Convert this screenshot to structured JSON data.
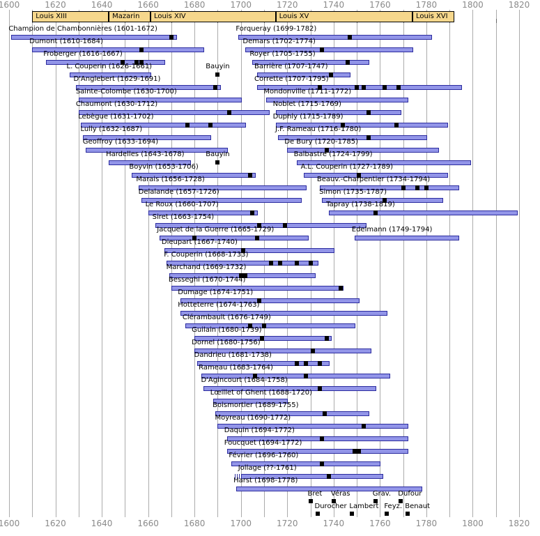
{
  "colors": {
    "background": "#FFFFFF",
    "bar_fill": "#9295E8",
    "bar_border": "#2B2B9E",
    "marker": "#000000",
    "reign_fill": "#F6D78C",
    "reign_border": "#000000",
    "grid": "#ABABAB",
    "axis_text": "#8A8A8A",
    "label_text": "#000000"
  },
  "chart_data": {
    "type": "timeline",
    "title": "French harpsichord composers timeline 1600-1820",
    "x_axis": {
      "min": 1600,
      "max": 1820,
      "label_step": 20,
      "grid_step": 10,
      "tick_labels": [
        "1600",
        "1620",
        "1640",
        "1660",
        "1680",
        "1700",
        "1720",
        "1740",
        "1760",
        "1780",
        "1800",
        "1820"
      ],
      "labels_position": "top and bottom"
    },
    "reigns": [
      {
        "label": "Louis XIII",
        "start": 1610,
        "end": 1643
      },
      {
        "label": "Mazarin",
        "start": 1643,
        "end": 1661
      },
      {
        "label": "Louis XIV",
        "start": 1661,
        "end": 1715
      },
      {
        "label": "Louis XV",
        "start": 1715,
        "end": 1774
      },
      {
        "label": "Louis XVI",
        "start": 1774,
        "end": 1792
      }
    ],
    "people": [
      {
        "row": 1,
        "label": "Champion de Chambonnières (1601-1672)",
        "start": 1601,
        "end": 1672,
        "markers": [
          1670
        ]
      },
      {
        "row": 1,
        "label": "Forqueray (1699-1782)",
        "start": 1699,
        "end": 1782,
        "markers": [
          1747
        ]
      },
      {
        "row": 2,
        "label": "Dumont (1610-1684)",
        "start": 1610,
        "end": 1684,
        "markers": [
          1657
        ]
      },
      {
        "row": 2,
        "label": "Demars (1702-1774)",
        "start": 1702,
        "end": 1774,
        "markers": [
          1735
        ]
      },
      {
        "row": 3,
        "label": "Froberger (1616-1667)",
        "start": 1616,
        "end": 1667,
        "markers": [
          1649,
          1655,
          1657
        ]
      },
      {
        "row": 3,
        "label": "Royer (1705-1755)",
        "start": 1705,
        "end": 1755,
        "markers": [
          1746
        ]
      },
      {
        "row": 4,
        "label": "L. Couperin (1626-1661)",
        "start": 1626,
        "end": 1661,
        "markers": []
      },
      {
        "row": 4,
        "label": "Barrière (1707-1747)",
        "start": 1707,
        "end": 1747,
        "markers": [
          1739
        ]
      },
      {
        "row": 5,
        "label": "D'Anglebert (1629-1691)",
        "start": 1629,
        "end": 1691,
        "markers": [
          1689
        ]
      },
      {
        "row": 5,
        "label": "Corrette (1707-1795)",
        "start": 1707,
        "end": 1795,
        "markers": [
          1734,
          1750,
          1753,
          1762,
          1768
        ]
      },
      {
        "row": 6,
        "label": "Sainte-Colombe (1630-1700)",
        "start": 1630,
        "end": 1700,
        "markers": []
      },
      {
        "row": 6,
        "label": "Mondonville (1711-1772)",
        "start": 1711,
        "end": 1772,
        "markers": []
      },
      {
        "row": 7,
        "label": "Chaumont (1630-1712)",
        "start": 1630,
        "end": 1712,
        "markers": [
          1695
        ]
      },
      {
        "row": 7,
        "label": "Noblet (1715-1769)",
        "start": 1715,
        "end": 1769,
        "markers": [
          1755
        ]
      },
      {
        "row": 8,
        "label": "Lebègue (1631-1702)",
        "start": 1631,
        "end": 1702,
        "markers": [
          1677,
          1687
        ]
      },
      {
        "row": 8,
        "label": "Duphly (1715-1789)",
        "start": 1715,
        "end": 1789,
        "markers": [
          1744,
          1767
        ]
      },
      {
        "row": 9,
        "label": "Lully (1632-1687)",
        "start": 1632,
        "end": 1687,
        "markers": []
      },
      {
        "row": 9,
        "label": "J.F. Rameau (1716-1780)",
        "start": 1716,
        "end": 1780,
        "markers": [
          1755
        ]
      },
      {
        "row": 10,
        "label": "Geoffroy (1633-1694)",
        "start": 1633,
        "end": 1694,
        "markers": []
      },
      {
        "row": 10,
        "label": "De Bury (1720-1785)",
        "start": 1720,
        "end": 1785,
        "markers": [
          1737
        ]
      },
      {
        "row": 11,
        "label": "Hardelles (1643-1678)",
        "start": 1643,
        "end": 1678,
        "markers": []
      },
      {
        "row": 11,
        "label": "Balbastre (1724-1799)",
        "start": 1724,
        "end": 1799,
        "markers": []
      },
      {
        "row": 12,
        "label": "Boyvin (1653-1706)",
        "start": 1653,
        "end": 1706,
        "markers": [
          1704
        ]
      },
      {
        "row": 12,
        "label": "A.L. Couperin (1727-1789)",
        "start": 1727,
        "end": 1789,
        "markers": [
          1751
        ]
      },
      {
        "row": 13,
        "label": "Marais (1656-1728)",
        "start": 1656,
        "end": 1728,
        "markers": []
      },
      {
        "row": 13,
        "label": "Beauv.-Charpentier (1734-1794)",
        "start": 1734,
        "end": 1794,
        "markers": [
          1770,
          1776,
          1780
        ]
      },
      {
        "row": 14,
        "label": "Delalande (1657-1726)",
        "start": 1657,
        "end": 1726,
        "markers": []
      },
      {
        "row": 14,
        "label": "Simon (1735-1787)",
        "start": 1735,
        "end": 1787,
        "markers": [
          1762
        ]
      },
      {
        "row": 15,
        "label": "Le Roux (1660-1707)",
        "start": 1660,
        "end": 1707,
        "markers": [
          1705
        ]
      },
      {
        "row": 15,
        "label": "Tapray (1738-1819)",
        "start": 1738,
        "end": 1819,
        "markers": [
          1758
        ]
      },
      {
        "row": 16,
        "label": "Siret (1663-1754)",
        "start": 1663,
        "end": 1754,
        "markers": [
          1708,
          1719
        ]
      },
      {
        "row": 17,
        "label": "Jacquet de la Guerre (1665-1729)",
        "start": 1665,
        "end": 1729,
        "markers": [
          1680,
          1707
        ]
      },
      {
        "row": 17,
        "label": "Edelmann (1749-1794)",
        "start": 1749,
        "end": 1794,
        "markers": []
      },
      {
        "row": 18,
        "label": "Dieupart (1667-1740)",
        "start": 1667,
        "end": 1740,
        "markers": [
          1701
        ]
      },
      {
        "row": 19,
        "label": "F. Couperin (1668-1733)",
        "start": 1668,
        "end": 1733,
        "markers": [
          1713,
          1717,
          1724,
          1730
        ]
      },
      {
        "row": 20,
        "label": "Marchand (1669-1732)",
        "start": 1669,
        "end": 1732,
        "markers": [
          1700,
          1702
        ]
      },
      {
        "row": 21,
        "label": "Besseghi (1670-1744)",
        "start": 1670,
        "end": 1744,
        "markers": [
          1743
        ]
      },
      {
        "row": 22,
        "label": "Dumage (1674-1751)",
        "start": 1674,
        "end": 1751,
        "markers": [
          1708
        ]
      },
      {
        "row": 23,
        "label": "Hotteterre (1674-1763)",
        "start": 1674,
        "end": 1763,
        "markers": []
      },
      {
        "row": 24,
        "label": "Clérambault (1676-1749)",
        "start": 1676,
        "end": 1749,
        "markers": [
          1704,
          1710
        ]
      },
      {
        "row": 25,
        "label": "Guilain (1680-1739)",
        "start": 1680,
        "end": 1739,
        "markers": [
          1709,
          1737
        ]
      },
      {
        "row": 26,
        "label": "Dornel (1680-1756)",
        "start": 1680,
        "end": 1756,
        "markers": [
          1731
        ]
      },
      {
        "row": 27,
        "label": "Dandrieu (1681-1738)",
        "start": 1681,
        "end": 1738,
        "markers": [
          1724,
          1728,
          1734
        ]
      },
      {
        "row": 28,
        "label": "Rameau (1683-1764)",
        "start": 1683,
        "end": 1764,
        "markers": [
          1706,
          1728
        ]
      },
      {
        "row": 29,
        "label": "D'Agincourt (1684-1758)",
        "start": 1684,
        "end": 1758,
        "markers": [
          1734
        ]
      },
      {
        "row": 30,
        "label": "Lœillet of Ghent (1688-1720)",
        "start": 1688,
        "end": 1720,
        "markers": []
      },
      {
        "row": 31,
        "label": "Boismortier (1689-1755)",
        "start": 1689,
        "end": 1755,
        "markers": [
          1736
        ]
      },
      {
        "row": 32,
        "label": "Moyreau (1690-1772)",
        "start": 1690,
        "end": 1772,
        "markers": [
          1753
        ]
      },
      {
        "row": 33,
        "label": "Daquin (1694-1772)",
        "start": 1694,
        "end": 1772,
        "markers": [
          1735
        ]
      },
      {
        "row": 34,
        "label": "Foucquet (1694-1772)",
        "start": 1694,
        "end": 1772,
        "markers": [
          1749,
          1751
        ]
      },
      {
        "row": 35,
        "label": "Février (1696-1760)",
        "start": 1696,
        "end": 1760,
        "markers": [
          1735
        ]
      },
      {
        "row": 36,
        "label": "Jollage (??-1761)",
        "start": 1700,
        "end": 1761,
        "markers": [
          1738
        ],
        "uncertain_start": true
      },
      {
        "row": 37,
        "label": "Harst (1698-1778)",
        "start": 1698,
        "end": 1778,
        "markers": []
      }
    ],
    "annotations": [
      {
        "label": "Bauyin",
        "year": 1690,
        "row": 4
      },
      {
        "label": "Bauyin",
        "year": 1690,
        "row": 11
      }
    ],
    "footer_annotations": [
      {
        "label": "Bret",
        "year": 1730,
        "line": 1
      },
      {
        "label": "Véras",
        "year": 1740,
        "line": 1
      },
      {
        "label": "Grav.",
        "year": 1758,
        "line": 1
      },
      {
        "label": "Dufour",
        "year": 1769,
        "line": 1
      },
      {
        "label": "Durocher",
        "year": 1733,
        "line": 2
      },
      {
        "label": "Lambert",
        "year": 1748,
        "line": 2
      },
      {
        "label": "Feyz.",
        "year": 1763,
        "line": 2
      },
      {
        "label": "Benaut",
        "year": 1772,
        "line": 2
      }
    ]
  }
}
